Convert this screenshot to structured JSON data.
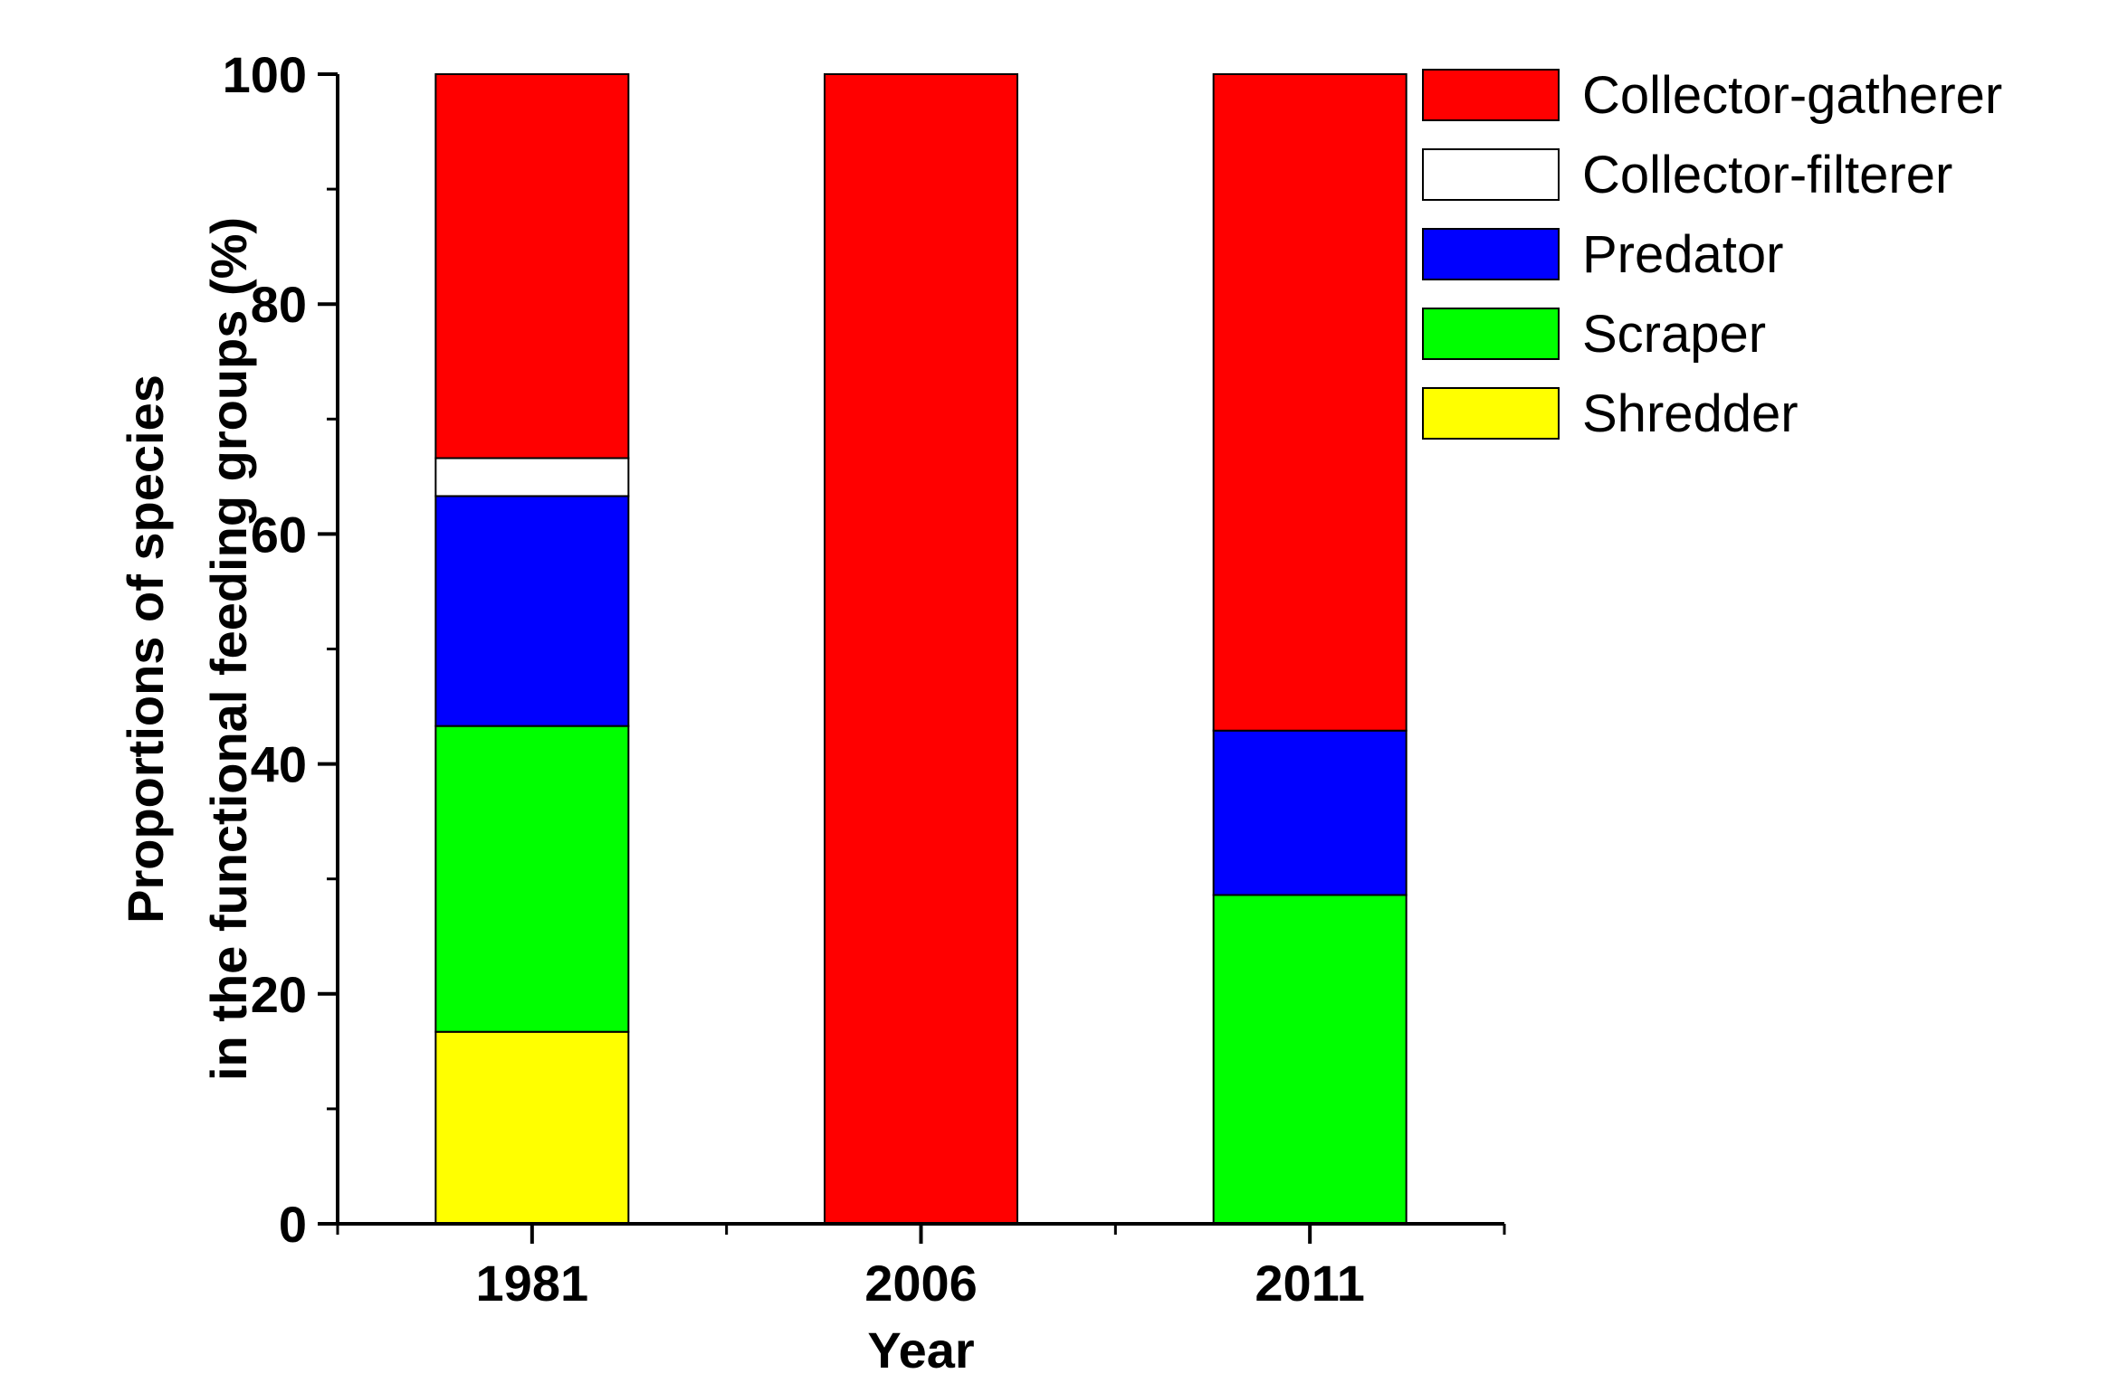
{
  "chart_data": {
    "type": "bar",
    "stacked": true,
    "title": "",
    "xlabel": "Year",
    "ylabel_lines": [
      "Proportions of species",
      "in the functional feeding groups (%)"
    ],
    "categories": [
      "1981",
      "2006",
      "2011"
    ],
    "ylim": [
      0,
      100
    ],
    "yticks": [
      0,
      20,
      40,
      60,
      80,
      100
    ],
    "grid": false,
    "legend_position": "top-right, outside plot area",
    "series": [
      {
        "name": "Shredder",
        "color": "#ffff00",
        "values": [
          16.7,
          0,
          0
        ]
      },
      {
        "name": "Scraper",
        "color": "#00ff00",
        "values": [
          26.6,
          0,
          28.6
        ]
      },
      {
        "name": "Predator",
        "color": "#0000ff",
        "values": [
          20.0,
          0,
          14.3
        ]
      },
      {
        "name": "Collector-filterer",
        "color": "#ffffff",
        "values": [
          3.3,
          0,
          0
        ]
      },
      {
        "name": "Collector-gatherer",
        "color": "#ff0000",
        "values": [
          33.4,
          100,
          57.1
        ]
      }
    ],
    "legend_order": [
      "Collector-gatherer",
      "Collector-filterer",
      "Predator",
      "Scraper",
      "Shredder"
    ]
  }
}
